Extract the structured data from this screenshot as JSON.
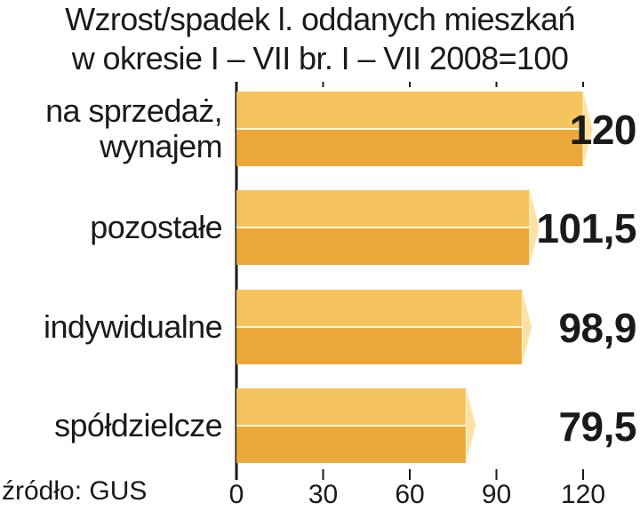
{
  "chart_data": {
    "type": "bar",
    "orientation": "horizontal",
    "title_lines": [
      "Wzrost/spadek l. oddanych mieszkań",
      "w okresie I – VII br. I – VII 2008=100"
    ],
    "categories": [
      [
        "na sprzedaż,",
        "wynajem"
      ],
      [
        "pozostałe"
      ],
      [
        "indywidualne"
      ],
      [
        "spółdzielcze"
      ]
    ],
    "values": [
      120,
      101.5,
      98.9,
      79.5
    ],
    "value_labels": [
      "120",
      "101,5",
      "98,9",
      "79,5"
    ],
    "x_ticks": [
      "0",
      "30",
      "60",
      "90",
      "120"
    ],
    "x_tick_values": [
      0,
      30,
      60,
      90,
      120
    ],
    "xlim": [
      0,
      120
    ],
    "source": "źródło: GUS",
    "colors": {
      "bar_top": "#f5c45e",
      "bar_bottom": "#eba83a",
      "bar_tip": "#fbe2a4",
      "bar_edge": "#fff6dc",
      "text": "#1a1a1a"
    }
  }
}
